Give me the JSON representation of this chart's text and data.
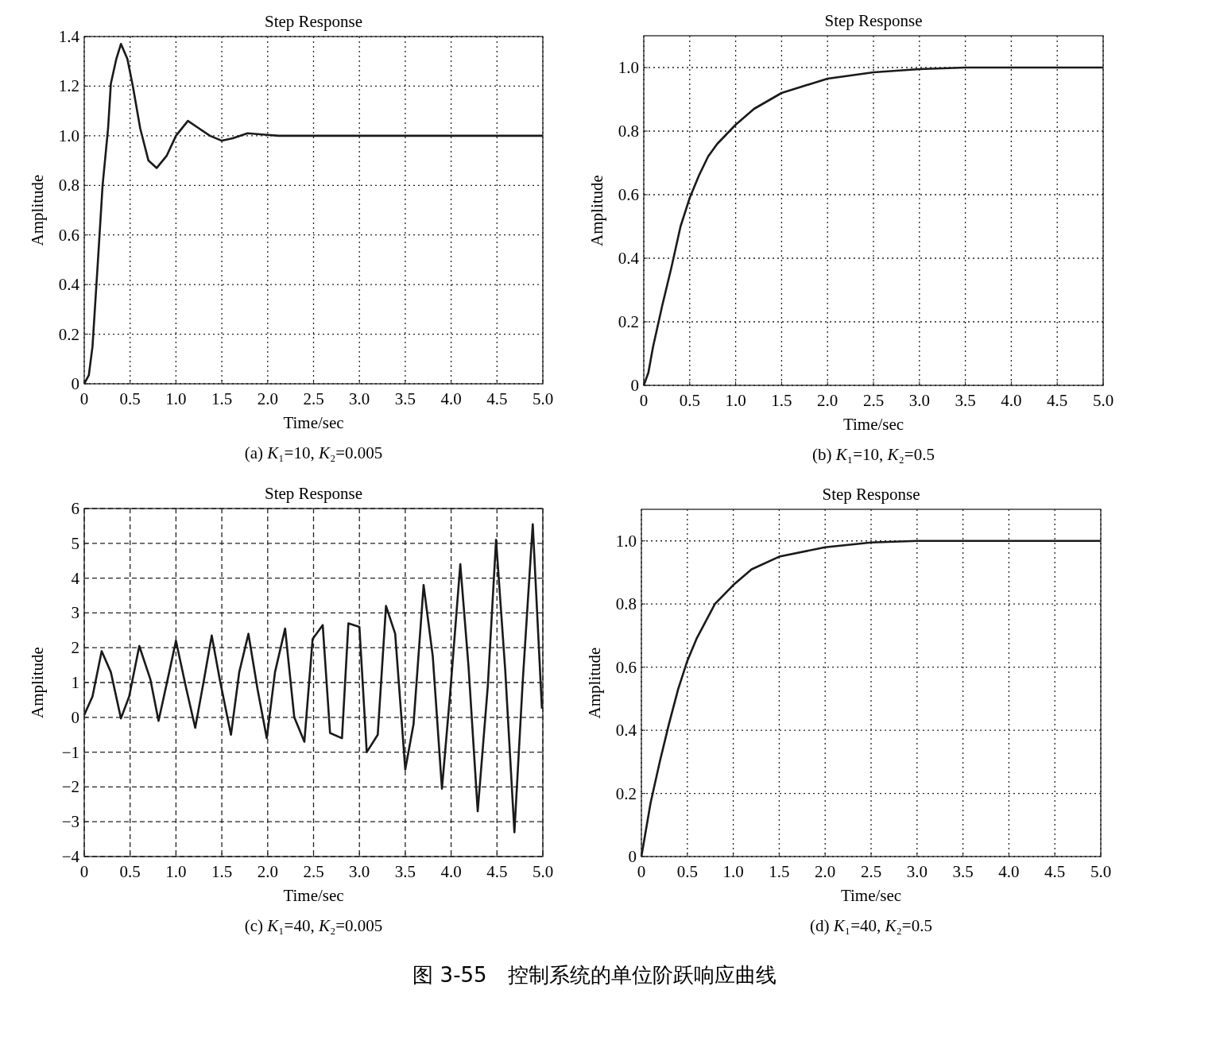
{
  "chart_data": [
    {
      "type": "line",
      "title": "Step Response",
      "xlabel": "Time/sec",
      "ylabel": "Amplitude",
      "annotations": [
        "(a) K₁=10, K₂=0.005"
      ],
      "xlim": [
        0,
        5
      ],
      "xticks": [
        0,
        0.5,
        {
          "value": 1,
          "label": "1.0"
        },
        1.5,
        {
          "value": 2,
          "label": "2.0"
        },
        2.5,
        {
          "value": 3,
          "label": "3.0"
        },
        3.5,
        {
          "value": 4,
          "label": "4.0"
        },
        4.5,
        {
          "value": 5,
          "label": "5.0"
        }
      ],
      "ylim": [
        0,
        1.4
      ],
      "yticks": [
        0,
        0.2,
        0.4,
        0.6,
        0.8,
        {
          "value": 1,
          "label": "1.0"
        },
        1.2,
        1.4
      ],
      "grid": true,
      "line_style": "solid",
      "series": [
        {
          "color": "#1a1a1a",
          "x": [
            0,
            0.05,
            0.09,
            0.15,
            0.2,
            0.26,
            0.29,
            0.35,
            0.4,
            0.47,
            0.53,
            0.61,
            0.7,
            0.79,
            0.9,
            1.0,
            1.13,
            1.25,
            1.37,
            1.5,
            1.62,
            1.78,
            1.94,
            2.12,
            5.0
          ],
          "values": [
            0,
            0.035,
            0.15,
            0.5,
            0.8,
            1.03,
            1.21,
            1.31,
            1.37,
            1.31,
            1.2,
            1.03,
            0.9,
            0.87,
            0.92,
            1.0,
            1.06,
            1.03,
            1.0,
            0.98,
            0.99,
            1.01,
            1.005,
            1.0,
            1.0
          ]
        }
      ]
    },
    {
      "type": "line",
      "title": "Step Response",
      "xlabel": "Time/sec",
      "ylabel": "Amplitude",
      "annotations": [
        "(b) K₁=10, K₂=0.5"
      ],
      "xlim": [
        0,
        5
      ],
      "xticks": [
        0,
        0.5,
        {
          "value": 1,
          "label": "1.0"
        },
        1.5,
        {
          "value": 2,
          "label": "2.0"
        },
        2.5,
        {
          "value": 3,
          "label": "3.0"
        },
        3.5,
        {
          "value": 4,
          "label": "4.0"
        },
        4.5,
        {
          "value": 5,
          "label": "5.0"
        }
      ],
      "ylim": [
        0,
        1.1
      ],
      "yticks": [
        0,
        0.2,
        0.4,
        0.6,
        0.8,
        {
          "value": 1,
          "label": "1.0"
        }
      ],
      "grid": true,
      "line_style": "solid",
      "series": [
        {
          "color": "#1a1a1a",
          "x": [
            0,
            0.05,
            0.1,
            0.2,
            0.3,
            0.4,
            0.5,
            0.6,
            0.7,
            0.8,
            1.0,
            1.2,
            1.5,
            2.0,
            2.5,
            3.0,
            3.5,
            5.0
          ],
          "values": [
            0,
            0.04,
            0.12,
            0.25,
            0.37,
            0.5,
            0.59,
            0.66,
            0.72,
            0.76,
            0.82,
            0.87,
            0.92,
            0.965,
            0.985,
            0.995,
            1.0,
            1.0
          ]
        }
      ]
    },
    {
      "type": "line",
      "title": "Step Response",
      "xlabel": "Time/sec",
      "ylabel": "Amplitude",
      "annotations": [
        "(c) K₁=40, K₂=0.005"
      ],
      "xlim": [
        0,
        5
      ],
      "xticks": [
        0,
        0.5,
        {
          "value": 1,
          "label": "1.0"
        },
        1.5,
        {
          "value": 2,
          "label": "2.0"
        },
        2.5,
        {
          "value": 3,
          "label": "3.0"
        },
        3.5,
        {
          "value": 4,
          "label": "4.0"
        },
        4.5,
        {
          "value": 5,
          "label": "5.0"
        }
      ],
      "ylim": [
        -4,
        6
      ],
      "yticks": [
        {
          "value": -4,
          "label": "−4"
        },
        {
          "value": -3,
          "label": "−3"
        },
        {
          "value": -2,
          "label": "−2"
        },
        {
          "value": -1,
          "label": "−1"
        },
        0,
        1,
        2,
        3,
        4,
        5,
        6
      ],
      "grid": true,
      "line_style": "solid",
      "series": [
        {
          "color": "#1a1a1a",
          "x": [
            0,
            0.09,
            0.19,
            0.29,
            0.4,
            0.49,
            0.6,
            0.72,
            0.81,
            0.91,
            1.0,
            1.11,
            1.21,
            1.3,
            1.39,
            1.48,
            1.6,
            1.69,
            1.79,
            1.89,
            1.99,
            2.08,
            2.19,
            2.29,
            2.4,
            2.49,
            2.6,
            2.68,
            2.81,
            2.88,
            3.0,
            3.08,
            3.2,
            3.29,
            3.39,
            3.5,
            3.59,
            3.7,
            3.8,
            3.9,
            3.99,
            4.1,
            4.19,
            4.29,
            4.4,
            4.49,
            4.59,
            4.69,
            4.78,
            4.89,
            4.99
          ],
          "values": [
            0.07,
            0.6,
            1.9,
            1.3,
            -0.03,
            0.6,
            2.05,
            1.1,
            -0.1,
            1.1,
            2.2,
            0.85,
            -0.3,
            1.0,
            2.35,
            1.05,
            -0.5,
            1.3,
            2.4,
            0.8,
            -0.6,
            1.3,
            2.55,
            0,
            -0.7,
            2.25,
            2.65,
            -0.45,
            -0.6,
            2.7,
            2.6,
            -1.0,
            -0.5,
            3.2,
            2.4,
            -1.5,
            -0.2,
            3.8,
            1.75,
            -2.05,
            0.7,
            4.4,
            1.45,
            -2.7,
            0.9,
            5.1,
            1.35,
            -3.3,
            1.0,
            5.55,
            0.25
          ]
        }
      ]
    },
    {
      "type": "line",
      "title": "Step Response",
      "xlabel": "Time/sec",
      "ylabel": "Amplitude",
      "annotations": [
        "(d) K₁=40, K₂=0.5",
        "图 3-55　控制系统的单位阶跃响应曲线"
      ],
      "xlim": [
        0,
        5
      ],
      "xticks": [
        0,
        0.5,
        {
          "value": 1,
          "label": "1.0"
        },
        1.5,
        {
          "value": 2,
          "label": "2.0"
        },
        2.5,
        {
          "value": 3,
          "label": "3.0"
        },
        3.5,
        {
          "value": 4,
          "label": "4.0"
        },
        4.5,
        {
          "value": 5,
          "label": "5.0"
        }
      ],
      "ylim": [
        0,
        1.1
      ],
      "yticks": [
        0,
        0.2,
        0.4,
        0.6,
        0.8,
        {
          "value": 1,
          "label": "1.0"
        }
      ],
      "grid": true,
      "line_style": "solid",
      "series": [
        {
          "color": "#1a1a1a",
          "x": [
            0,
            0.1,
            0.2,
            0.3,
            0.4,
            0.5,
            0.6,
            0.8,
            1.0,
            1.2,
            1.5,
            2.0,
            2.5,
            3.0,
            5.0
          ],
          "values": [
            0,
            0.17,
            0.3,
            0.42,
            0.53,
            0.62,
            0.69,
            0.8,
            0.86,
            0.91,
            0.95,
            0.98,
            0.995,
            1.0,
            1.0
          ]
        }
      ]
    }
  ]
}
